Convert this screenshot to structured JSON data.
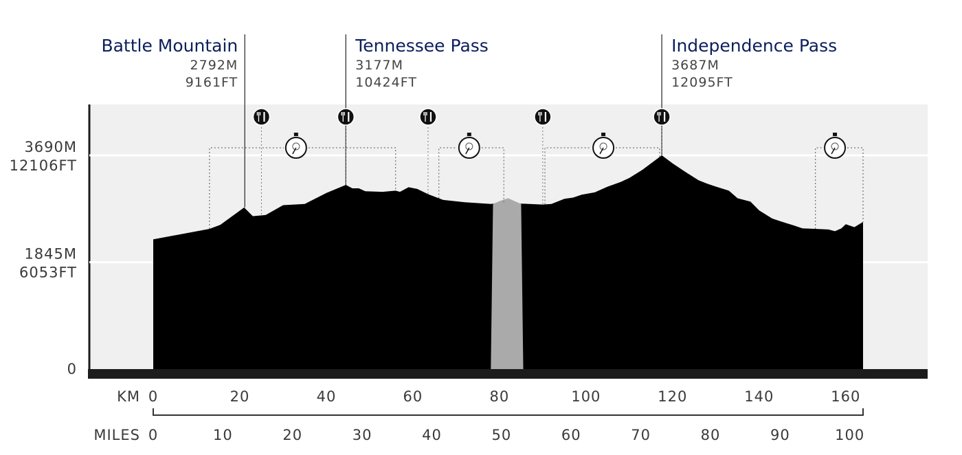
{
  "chart_data": {
    "type": "area",
    "x_unit": "KM",
    "secondary_x_unit": "MILES",
    "xlim": [
      0,
      164
    ],
    "x_ticks_km": [
      "0",
      "20",
      "40",
      "60",
      "80",
      "100",
      "120",
      "140",
      "160"
    ],
    "x_ticks_miles": [
      "0",
      "10",
      "20",
      "30",
      "40",
      "50",
      "60",
      "70",
      "80",
      "90",
      "100"
    ],
    "ylim_m": [
      0,
      4400
    ],
    "y_ticks": [
      {
        "value_m": 0,
        "label": [
          "0"
        ]
      },
      {
        "value_m": 1845,
        "label": [
          "1845M",
          "6053FT"
        ]
      },
      {
        "value_m": 3690,
        "label": [
          "3690M",
          "12106FT"
        ]
      }
    ],
    "grid": "horizontal",
    "series": [
      {
        "kind": "elevation",
        "x_km": [
          0,
          13,
          15.5,
          21,
          23,
          26,
          30,
          35,
          40,
          44.5,
          46,
          47.5,
          49,
          53,
          56,
          57,
          59,
          61,
          63.5,
          67,
          72,
          78,
          81,
          84,
          90,
          92,
          95,
          97,
          99,
          102,
          105,
          108,
          110,
          113,
          117.5,
          120,
          123,
          126,
          128,
          130,
          133,
          135,
          138,
          140,
          143,
          145,
          148,
          150,
          153,
          156,
          157.5,
          159,
          160,
          162,
          164
        ],
        "y_m": [
          2240,
          2420,
          2490,
          2790,
          2640,
          2660,
          2830,
          2850,
          3040,
          3180,
          3120,
          3120,
          3070,
          3060,
          3080,
          3060,
          3140,
          3110,
          3020,
          2920,
          2880,
          2850,
          2880,
          2860,
          2840,
          2850,
          2940,
          2960,
          3010,
          3050,
          3150,
          3230,
          3300,
          3440,
          3690,
          3550,
          3400,
          3260,
          3200,
          3150,
          3080,
          2950,
          2890,
          2740,
          2600,
          2550,
          2480,
          2430,
          2420,
          2410,
          2380,
          2430,
          2500,
          2450,
          2540
        ]
      },
      {
        "kind": "neutral-zone",
        "x_km": [
          78,
          78.5,
          80,
          82,
          83.5,
          85,
          85.5
        ],
        "y_m": [
          0,
          2850,
          2900,
          2950,
          2900,
          2850,
          0
        ]
      }
    ],
    "annotations": [
      {
        "name": "Battle Mountain",
        "elev_m": "2792M",
        "elev_ft": "9161FT",
        "x_km": 21
      },
      {
        "name": "Tennessee Pass",
        "elev_m": "3177M",
        "elev_ft": "10424FT",
        "x_km": 44.5
      },
      {
        "name": "Independence Pass",
        "elev_m": "3687M",
        "elev_ft": "12095FT",
        "x_km": 117.5
      }
    ],
    "aid_stations_km": [
      25,
      44.5,
      63.5,
      90,
      117.5
    ],
    "timing_checkpoints": [
      {
        "x_km": 33,
        "from_km": 13,
        "to_km": 56
      },
      {
        "x_km": 73,
        "from_km": 66,
        "to_km": 81
      },
      {
        "x_km": 104,
        "from_km": 90.5,
        "to_km": 117
      },
      {
        "x_km": 157.5,
        "from_km": 153,
        "to_km": 164
      }
    ]
  },
  "colors": {
    "plot_background": "#f0f0f0",
    "elevation_fill": "#000000",
    "neutral_zone_fill": "#aaaaaa",
    "pass_name": "#0c1f5c",
    "text": "#3a3a3a",
    "baseline": "#1c1c1c"
  },
  "icons": {
    "aid_station": "fork-knife-icon",
    "checkpoint": "stopwatch-icon"
  }
}
